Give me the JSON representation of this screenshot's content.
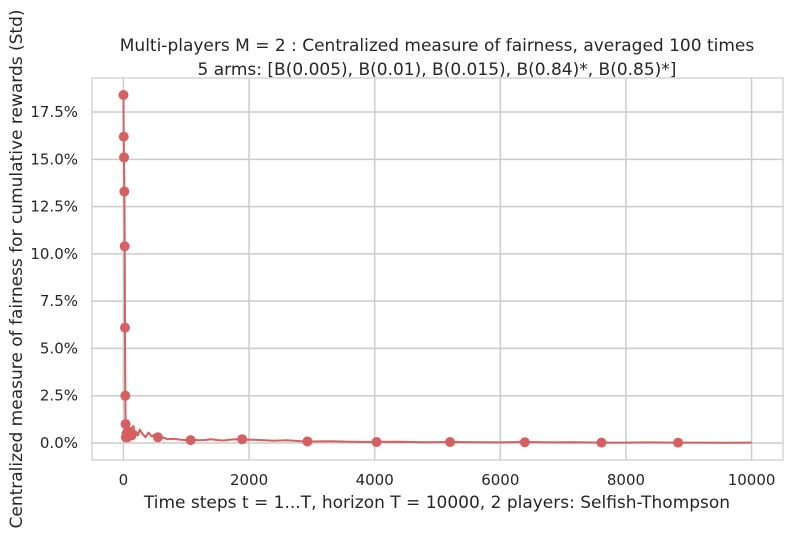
{
  "chart_data": {
    "type": "line",
    "title": "Multi-players M = 2 : Centralized measure of fairness, averaged 100 times",
    "subtitle": "5 arms: [B(0.005), B(0.01), B(0.015), B(0.84)*, B(0.85)*]",
    "xlabel": "Time steps t = 1...T, horizon T = 10000, 2 players: Selfish-Thompson",
    "ylabel": "Centralized measure of fairness for cumulative rewards (Std)",
    "xlim": [
      -500,
      10500
    ],
    "ylim": [
      -0.9,
      19.3
    ],
    "x_ticks": [
      0,
      2000,
      4000,
      6000,
      8000,
      10000
    ],
    "x_tick_labels": [
      "0",
      "2000",
      "4000",
      "6000",
      "8000",
      "10000"
    ],
    "y_ticks": [
      0,
      2.5,
      5,
      7.5,
      10,
      12.5,
      15,
      17.5
    ],
    "y_tick_labels": [
      "0.0%",
      "2.5%",
      "5.0%",
      "7.5%",
      "10.0%",
      "12.5%",
      "15.0%",
      "17.5%"
    ],
    "grid": true,
    "color": "#d65f5f",
    "series": [
      {
        "x": [
          1,
          5,
          10,
          15,
          20,
          25,
          30,
          35,
          40,
          50,
          60,
          80,
          100,
          130,
          160,
          180,
          200,
          230,
          260,
          300,
          350,
          400,
          450,
          500,
          550,
          600,
          650,
          700,
          800,
          900,
          1000,
          1100,
          1200,
          1300,
          1400,
          1500,
          1600,
          1700,
          1800,
          1900,
          2000,
          2200,
          2400,
          2600,
          2800,
          3000,
          3300,
          3600,
          4000,
          4400,
          4800,
          5200,
          5600,
          6000,
          6400,
          6800,
          7200,
          7600,
          8000,
          8400,
          8800,
          9200,
          9600,
          10000
        ],
        "y": [
          18.4,
          16.2,
          15.1,
          13.3,
          10.4,
          6.1,
          2.5,
          1.0,
          0.3,
          0.5,
          0.3,
          0.6,
          0.4,
          0.8,
          0.9,
          0.5,
          0.6,
          0.4,
          0.7,
          0.5,
          0.3,
          0.55,
          0.35,
          0.45,
          0.3,
          0.25,
          0.28,
          0.2,
          0.22,
          0.18,
          0.15,
          0.17,
          0.14,
          0.16,
          0.2,
          0.15,
          0.13,
          0.18,
          0.2,
          0.16,
          0.18,
          0.15,
          0.12,
          0.14,
          0.1,
          0.08,
          0.09,
          0.06,
          0.05,
          0.07,
          0.04,
          0.05,
          0.04,
          0.03,
          0.05,
          0.03,
          0.04,
          0.02,
          0.02,
          0.03,
          0.02,
          0.02,
          0.01,
          0.02
        ]
      }
    ],
    "markers": {
      "x": [
        1,
        5,
        10,
        15,
        20,
        25,
        30,
        35,
        40,
        50,
        60,
        80,
        100,
        130,
        550,
        1070,
        1890,
        2930,
        4030,
        5200,
        6390,
        7610,
        8830
      ],
      "y": [
        18.4,
        16.2,
        15.1,
        13.3,
        10.4,
        6.1,
        2.5,
        1.0,
        0.3,
        0.5,
        0.3,
        0.6,
        0.4,
        0.4,
        0.3,
        0.15,
        0.2,
        0.08,
        0.05,
        0.05,
        0.04,
        0.02,
        0.02
      ]
    }
  }
}
